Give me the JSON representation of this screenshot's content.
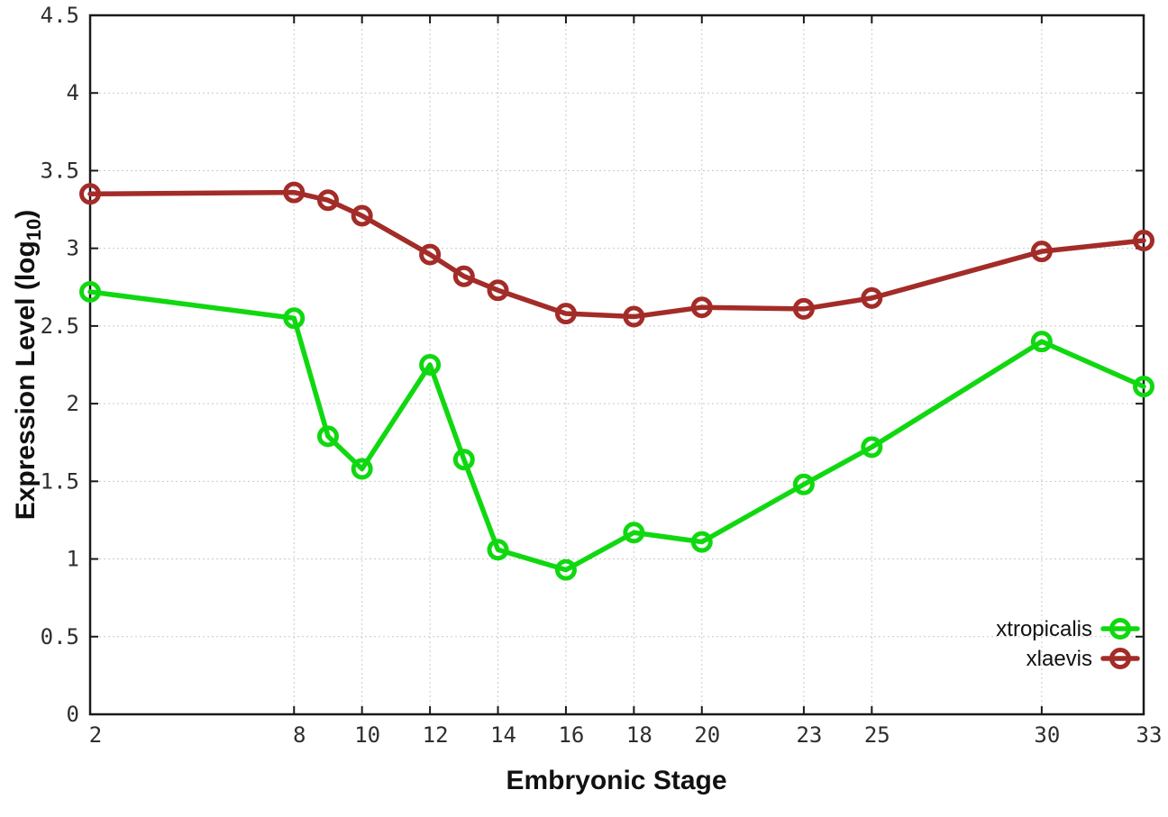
{
  "chart_data": {
    "type": "line",
    "title": "",
    "xlabel": "Embryonic Stage",
    "ylabel": {
      "prefix": "Expression Level (log",
      "sub": "10",
      "suffix": ")"
    },
    "xlim": [
      2,
      33
    ],
    "ylim": [
      0,
      4.5
    ],
    "grid": true,
    "legend_position": "bottom-right-inside",
    "x_ticks": [
      2,
      8,
      10,
      12,
      14,
      16,
      18,
      20,
      23,
      25,
      30,
      33
    ],
    "x_tick_labels": [
      "2",
      "8",
      "10",
      "12",
      "14",
      "16",
      "18",
      "20",
      "23",
      "25",
      "30",
      "33"
    ],
    "y_ticks": [
      0,
      0.5,
      1,
      1.5,
      2,
      2.5,
      3,
      3.5,
      4,
      4.5
    ],
    "y_tick_labels": [
      "0",
      "0.5",
      "1",
      "1.5",
      "2",
      "2.5",
      "3",
      "3.5",
      "4",
      "4.5"
    ],
    "x": [
      2,
      8,
      9,
      10,
      12,
      13,
      14,
      16,
      18,
      20,
      23,
      25,
      30,
      33
    ],
    "series": [
      {
        "name": "xtropicalis",
        "color": "#10d810",
        "marker": "open-circle",
        "values": [
          2.72,
          2.55,
          1.79,
          1.58,
          2.25,
          1.64,
          1.06,
          0.93,
          1.17,
          1.11,
          1.48,
          1.72,
          2.4,
          2.11
        ]
      },
      {
        "name": "xlaevis",
        "color": "#a32c28",
        "marker": "open-circle",
        "values": [
          3.35,
          3.36,
          3.31,
          3.21,
          2.96,
          2.82,
          2.73,
          2.58,
          2.56,
          2.62,
          2.61,
          2.68,
          2.98,
          3.05
        ]
      }
    ],
    "colors": {
      "background": "#ffffff",
      "border": "#1a1a1a",
      "grid": "#c9c9c9",
      "text": "#2b2b2b"
    }
  }
}
